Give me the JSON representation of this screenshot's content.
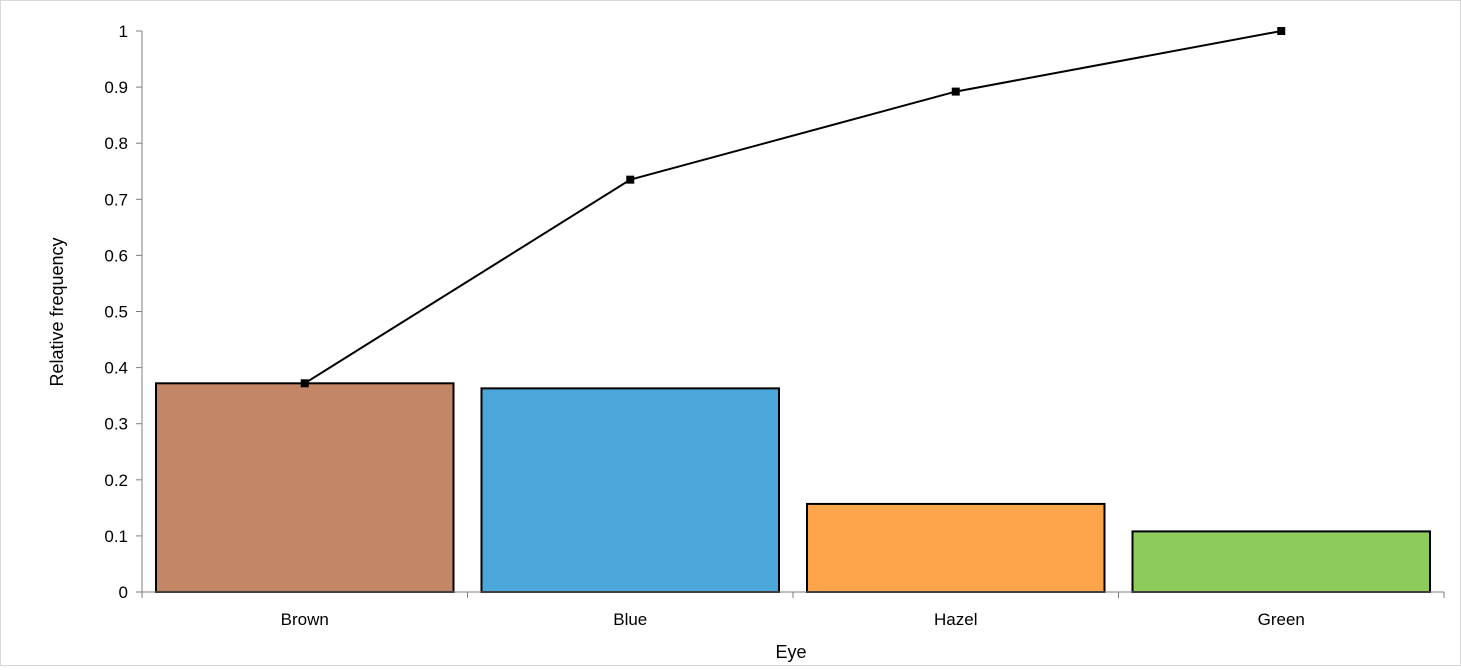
{
  "chart_data": {
    "type": "bar",
    "title": "",
    "xlabel": "Eye",
    "ylabel": "Relative frequency",
    "ylim": [
      0,
      1
    ],
    "yticks": [
      "0",
      "0.1",
      "0.2",
      "0.3",
      "0.4",
      "0.5",
      "0.6",
      "0.7",
      "0.8",
      "0.9",
      "1"
    ],
    "categories": [
      "Brown",
      "Blue",
      "Hazel",
      "Green"
    ],
    "values": [
      0.372,
      0.363,
      0.157,
      0.108
    ],
    "bar_colors": [
      "#c38767",
      "#4ba6da",
      "#fea44b",
      "#8dcb5a"
    ],
    "cumulative": {
      "values": [
        0.372,
        0.735,
        0.892,
        1.0
      ],
      "color": "#000000",
      "marker": "square"
    },
    "grid": false,
    "legend": "none"
  }
}
